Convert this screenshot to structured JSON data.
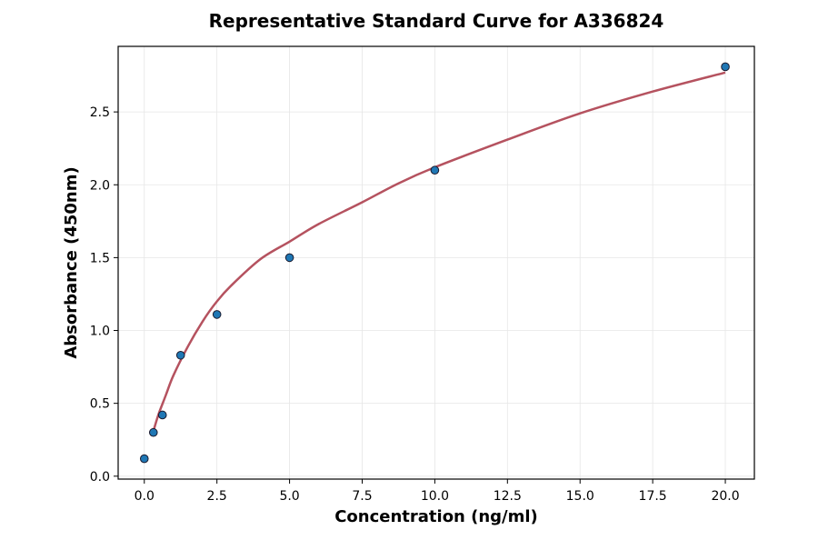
{
  "chart_data": {
    "type": "scatter",
    "title": "Representative Standard Curve for A336824",
    "xlabel": "Concentration (ng/ml)",
    "ylabel": "Absorbance (450nm)",
    "xlim": [
      -0.9,
      21.0
    ],
    "ylim": [
      -0.02,
      2.95
    ],
    "xticks": [
      0.0,
      2.5,
      5.0,
      7.5,
      10.0,
      12.5,
      15.0,
      17.5,
      20.0
    ],
    "xtick_labels": [
      "0.0",
      "2.5",
      "5.0",
      "7.5",
      "10.0",
      "12.5",
      "15.0",
      "17.5",
      "20.0"
    ],
    "yticks": [
      0.0,
      0.5,
      1.0,
      1.5,
      2.0,
      2.5
    ],
    "ytick_labels": [
      "0.0",
      "0.5",
      "1.0",
      "1.5",
      "2.0",
      "2.5"
    ],
    "grid": true,
    "points": {
      "x": [
        0.0,
        0.313,
        0.625,
        1.25,
        2.5,
        5.0,
        10.0,
        20.0
      ],
      "y": [
        0.12,
        0.3,
        0.42,
        0.83,
        1.11,
        1.5,
        2.1,
        2.81
      ]
    },
    "fit_curve": {
      "x": [
        0.313,
        0.5,
        0.75,
        1.0,
        1.5,
        2.0,
        2.5,
        3.0,
        4.0,
        5.0,
        6.0,
        7.5,
        8.75,
        10.0,
        12.5,
        15.0,
        17.5,
        20.0
      ],
      "y": [
        0.31,
        0.43,
        0.56,
        0.69,
        0.89,
        1.06,
        1.2,
        1.31,
        1.49,
        1.61,
        1.73,
        1.88,
        2.01,
        2.12,
        2.31,
        2.49,
        2.64,
        2.77
      ]
    },
    "colors": {
      "points": "#1f77b4",
      "point_edge": "#1a1a2e",
      "curve": "#b5525f",
      "grid": "#e6e6e6"
    }
  }
}
